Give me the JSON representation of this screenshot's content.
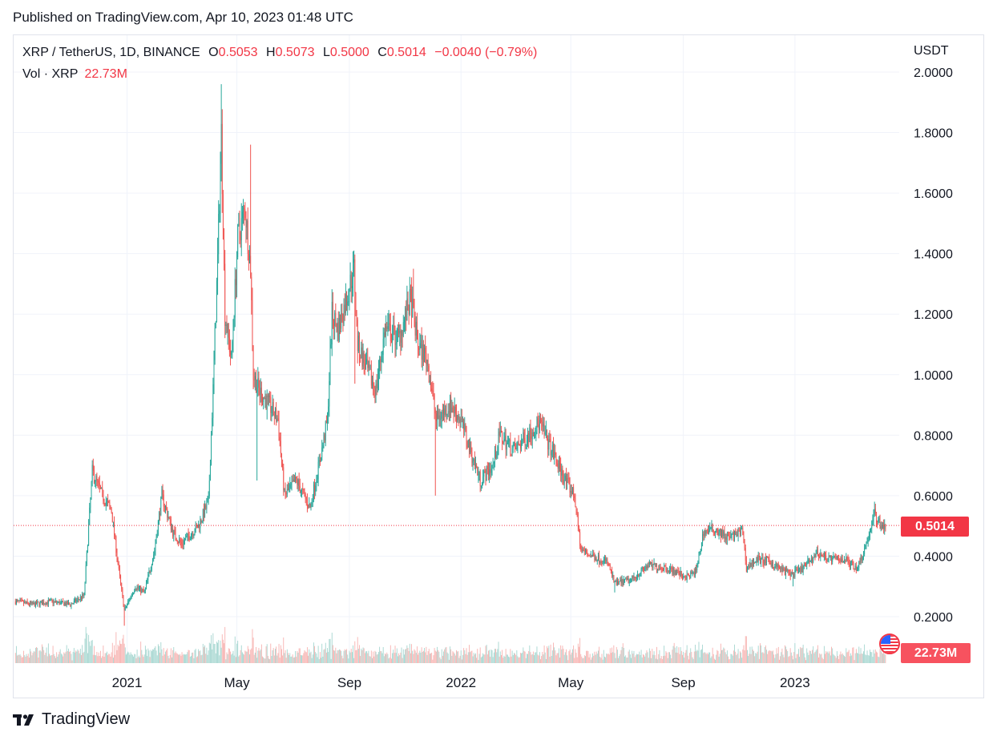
{
  "header": {
    "published": "Published on TradingView.com, Apr 10, 2023 01:48 UTC"
  },
  "legend": {
    "symbol": "XRP / TetherUS, 1D, BINANCE",
    "o_label": "O",
    "o_value": "0.5053",
    "h_label": "H",
    "h_value": "0.5073",
    "l_label": "L",
    "l_value": "0.5000",
    "c_label": "C",
    "c_value": "0.5014",
    "change": "−0.0040 (−0.79%)",
    "vol_label": "Vol · XRP",
    "vol_value": "22.73M"
  },
  "axis": {
    "currency": "USDT"
  },
  "badges": {
    "last_price": "0.5014",
    "volume": "22.73M"
  },
  "footer": {
    "brand": "TradingView"
  },
  "colors": {
    "up": "#26a69a",
    "down": "#ef5350",
    "accent": "#f23645",
    "grid": "#f0f3fa"
  },
  "chart_data": {
    "type": "candlestick",
    "symbol": "XRP/USDT",
    "interval": "1D",
    "y_ticks": [
      "2.0000",
      "1.8000",
      "1.6000",
      "1.4000",
      "1.2000",
      "1.0000",
      "0.8000",
      "0.6000",
      "0.4000",
      "0.2000"
    ],
    "ylim": [
      0.12,
      2.02
    ],
    "x_ticks": [
      "2021",
      "May",
      "Sep",
      "2022",
      "May",
      "Sep",
      "2023"
    ],
    "x_range": [
      "2020-08-30",
      "2023-04-25"
    ],
    "last_price": 0.5014,
    "price_path": [
      [
        "2020-09-01",
        0.25
      ],
      [
        "2020-09-20",
        0.24
      ],
      [
        "2020-10-10",
        0.25
      ],
      [
        "2020-10-31",
        0.24
      ],
      [
        "2020-11-15",
        0.27
      ],
      [
        "2020-11-24",
        0.68
      ],
      [
        "2020-12-05",
        0.6
      ],
      [
        "2020-12-15",
        0.55
      ],
      [
        "2020-12-23",
        0.35
      ],
      [
        "2020-12-29",
        0.22
      ],
      [
        "2021-01-10",
        0.3
      ],
      [
        "2021-01-20",
        0.28
      ],
      [
        "2021-01-31",
        0.42
      ],
      [
        "2021-02-08",
        0.6
      ],
      [
        "2021-02-20",
        0.48
      ],
      [
        "2021-03-01",
        0.44
      ],
      [
        "2021-03-20",
        0.5
      ],
      [
        "2021-03-31",
        0.58
      ],
      [
        "2021-04-05",
        0.95
      ],
      [
        "2021-04-10",
        1.38
      ],
      [
        "2021-04-14",
        1.8
      ],
      [
        "2021-04-18",
        1.2
      ],
      [
        "2021-04-25",
        1.05
      ],
      [
        "2021-05-02",
        1.45
      ],
      [
        "2021-05-10",
        1.55
      ],
      [
        "2021-05-16",
        1.35
      ],
      [
        "2021-05-19",
        1.0
      ],
      [
        "2021-05-25",
        0.95
      ],
      [
        "2021-06-05",
        0.9
      ],
      [
        "2021-06-15",
        0.85
      ],
      [
        "2021-06-22",
        0.6
      ],
      [
        "2021-07-05",
        0.65
      ],
      [
        "2021-07-20",
        0.56
      ],
      [
        "2021-07-31",
        0.72
      ],
      [
        "2021-08-08",
        0.85
      ],
      [
        "2021-08-13",
        1.2
      ],
      [
        "2021-08-20",
        1.15
      ],
      [
        "2021-09-06",
        1.35
      ],
      [
        "2021-09-10",
        1.1
      ],
      [
        "2021-09-22",
        1.0
      ],
      [
        "2021-09-30",
        0.95
      ],
      [
        "2021-10-10",
        1.15
      ],
      [
        "2021-10-25",
        1.12
      ],
      [
        "2021-11-07",
        1.25
      ],
      [
        "2021-11-15",
        1.1
      ],
      [
        "2021-11-25",
        1.05
      ],
      [
        "2021-12-05",
        0.85
      ],
      [
        "2021-12-20",
        0.9
      ],
      [
        "2022-01-01",
        0.85
      ],
      [
        "2022-01-08",
        0.78
      ],
      [
        "2022-01-22",
        0.65
      ],
      [
        "2022-02-05",
        0.7
      ],
      [
        "2022-02-12",
        0.8
      ],
      [
        "2022-02-28",
        0.75
      ],
      [
        "2022-03-15",
        0.8
      ],
      [
        "2022-03-28",
        0.84
      ],
      [
        "2022-04-10",
        0.75
      ],
      [
        "2022-04-25",
        0.65
      ],
      [
        "2022-05-05",
        0.6
      ],
      [
        "2022-05-12",
        0.42
      ],
      [
        "2022-05-25",
        0.4
      ],
      [
        "2022-06-10",
        0.38
      ],
      [
        "2022-06-18",
        0.31
      ],
      [
        "2022-07-05",
        0.32
      ],
      [
        "2022-07-25",
        0.37
      ],
      [
        "2022-08-15",
        0.36
      ],
      [
        "2022-09-05",
        0.33
      ],
      [
        "2022-09-15",
        0.35
      ],
      [
        "2022-09-23",
        0.48
      ],
      [
        "2022-10-05",
        0.49
      ],
      [
        "2022-10-20",
        0.46
      ],
      [
        "2022-11-05",
        0.48
      ],
      [
        "2022-11-09",
        0.36
      ],
      [
        "2022-11-20",
        0.39
      ],
      [
        "2022-12-05",
        0.38
      ],
      [
        "2022-12-20",
        0.35
      ],
      [
        "2022-12-30",
        0.34
      ],
      [
        "2023-01-10",
        0.36
      ],
      [
        "2023-01-25",
        0.41
      ],
      [
        "2023-02-10",
        0.39
      ],
      [
        "2023-02-25",
        0.39
      ],
      [
        "2023-03-10",
        0.36
      ],
      [
        "2023-03-20",
        0.44
      ],
      [
        "2023-03-29",
        0.54
      ],
      [
        "2023-04-05",
        0.5
      ],
      [
        "2023-04-10",
        0.5014
      ]
    ],
    "wick_extremes": [
      [
        "2021-04-14",
        1.96
      ],
      [
        "2021-05-16",
        1.76
      ],
      [
        "2021-09-06",
        1.41
      ],
      [
        "2021-11-10",
        1.35
      ],
      [
        "2020-12-29",
        0.17
      ],
      [
        "2021-05-23",
        0.65
      ],
      [
        "2021-09-07",
        0.97
      ],
      [
        "2021-12-04",
        0.6
      ],
      [
        "2022-06-18",
        0.28
      ],
      [
        "2022-12-30",
        0.3
      ],
      [
        "2023-03-29",
        0.58
      ]
    ]
  }
}
